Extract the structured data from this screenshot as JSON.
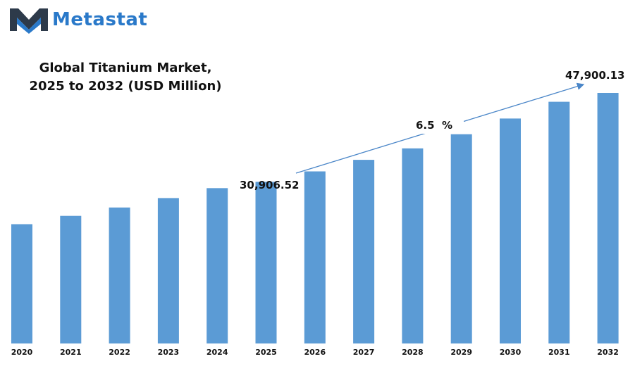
{
  "brand": {
    "name": "Metastat",
    "logo_icon": "m-chevron-logo",
    "logo_color": "#2a79c9",
    "logo_dark": "#2d3a4a"
  },
  "chart_data": {
    "type": "bar",
    "title_line1": "Global Titanium Market,",
    "title_line2": "2025 to 2032 (USD Million)",
    "categories": [
      "2020",
      "2021",
      "2022",
      "2023",
      "2024",
      "2025",
      "2026",
      "2027",
      "2028",
      "2029",
      "2030",
      "2031",
      "2032"
    ],
    "values": [
      22800,
      24400,
      26000,
      27800,
      29700,
      30906.52,
      32900,
      35100,
      37300,
      40000,
      43000,
      46200,
      47900.13
    ],
    "bar_color": "#5b9bd5",
    "annotations": {
      "start_label": "30,906.52",
      "end_label": "47,900.13",
      "cagr_label": "6.5  %"
    },
    "ylim": [
      0,
      50000
    ],
    "grid": false,
    "legend": "none"
  }
}
